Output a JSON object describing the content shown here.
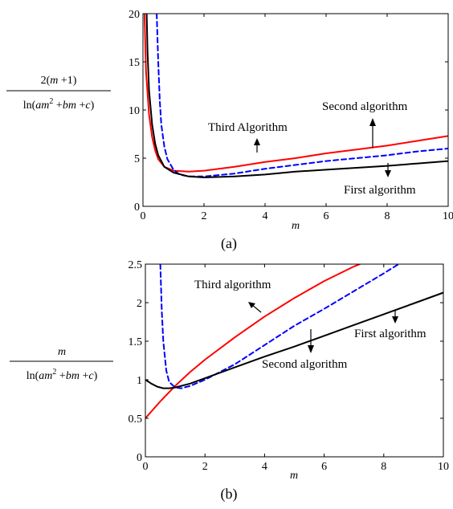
{
  "chart_data": [
    {
      "type": "line",
      "caption": "(a)",
      "xlabel": "m",
      "ylabel": "2(m+1) / ln(am^2+bm+c)",
      "xlim": [
        0,
        10
      ],
      "ylim": [
        0,
        20
      ],
      "xticks": [
        0,
        2,
        4,
        6,
        8,
        10
      ],
      "yticks": [
        0,
        5,
        10,
        15,
        20
      ],
      "grid": false,
      "series": [
        {
          "name": "Third Algorithm",
          "color": "#ff0000",
          "dash": "solid",
          "x": [
            0.05,
            0.1,
            0.2,
            0.3,
            0.4,
            0.5,
            0.7,
            1.0,
            1.5,
            2,
            3,
            4,
            5,
            6,
            7,
            8,
            9,
            10
          ],
          "y": [
            20,
            14,
            9.5,
            7.2,
            5.8,
            4.9,
            4.1,
            3.7,
            3.6,
            3.7,
            4.1,
            4.6,
            5.0,
            5.5,
            5.9,
            6.3,
            6.8,
            7.3
          ]
        },
        {
          "name": "Second algorithm",
          "color": "#0000ff",
          "dash": "dashed",
          "x": [
            0.45,
            0.5,
            0.55,
            0.6,
            0.7,
            0.8,
            1.0,
            1.2,
            1.5,
            2,
            3,
            4,
            5,
            6,
            7,
            8,
            9,
            10
          ],
          "y": [
            20,
            15,
            11,
            8.5,
            6.2,
            4.9,
            3.8,
            3.3,
            3.1,
            3.1,
            3.4,
            3.9,
            4.3,
            4.7,
            5.0,
            5.3,
            5.7,
            6.0
          ]
        },
        {
          "name": "First algorithm",
          "color": "#000000",
          "dash": "solid",
          "x": [
            0.12,
            0.15,
            0.2,
            0.3,
            0.4,
            0.5,
            0.7,
            1.0,
            1.5,
            2,
            3,
            4,
            5,
            6,
            7,
            8,
            9,
            10
          ],
          "y": [
            20,
            16,
            12,
            8.5,
            6.5,
            5.3,
            4.1,
            3.5,
            3.1,
            3.0,
            3.1,
            3.3,
            3.6,
            3.8,
            4.0,
            4.2,
            4.45,
            4.7
          ]
        }
      ],
      "annotations": [
        {
          "text": "Third Algorithm",
          "arrow": "up"
        },
        {
          "text": "Second algorithm",
          "arrow": "up"
        },
        {
          "text": "First algorithm",
          "arrow": "down"
        }
      ]
    },
    {
      "type": "line",
      "caption": "(b)",
      "xlabel": "m",
      "ylabel": "m / ln(am^2+bm+c)",
      "xlim": [
        0,
        10
      ],
      "ylim": [
        0,
        2.5
      ],
      "xticks": [
        0,
        2,
        4,
        6,
        8,
        10
      ],
      "yticks": [
        0,
        0.5,
        1,
        1.5,
        2,
        2.5
      ],
      "grid": false,
      "series": [
        {
          "name": "Third algorithm",
          "color": "#ff0000",
          "dash": "solid",
          "x": [
            0,
            0.5,
            1,
            1.5,
            2,
            3,
            4,
            5,
            6,
            7,
            7.2
          ],
          "y": [
            0.5,
            0.72,
            0.92,
            1.1,
            1.26,
            1.55,
            1.82,
            2.06,
            2.28,
            2.47,
            2.5
          ]
        },
        {
          "name": "Second algorithm",
          "color": "#0000ff",
          "dash": "dashed",
          "x": [
            0.5,
            0.55,
            0.6,
            0.7,
            0.8,
            1.0,
            1.2,
            1.5,
            2,
            3,
            4,
            5,
            6,
            7,
            8,
            8.5
          ],
          "y": [
            2.5,
            1.9,
            1.5,
            1.12,
            0.97,
            0.9,
            0.89,
            0.92,
            1.0,
            1.2,
            1.45,
            1.7,
            1.92,
            2.15,
            2.38,
            2.5
          ]
        },
        {
          "name": "First algorithm",
          "color": "#000000",
          "dash": "solid",
          "x": [
            0,
            0.2,
            0.4,
            0.6,
            0.8,
            1.0,
            1.5,
            2,
            3,
            4,
            5,
            6,
            7,
            8,
            9,
            10
          ],
          "y": [
            1.0,
            0.95,
            0.91,
            0.89,
            0.89,
            0.9,
            0.95,
            1.02,
            1.16,
            1.3,
            1.43,
            1.57,
            1.71,
            1.85,
            1.99,
            2.13
          ]
        }
      ],
      "annotations": [
        {
          "text": "Third algorithm",
          "arrow": "down-left"
        },
        {
          "text": "Second algorithm",
          "arrow": "down"
        },
        {
          "text": "First algorithm",
          "arrow": "down"
        }
      ]
    }
  ]
}
